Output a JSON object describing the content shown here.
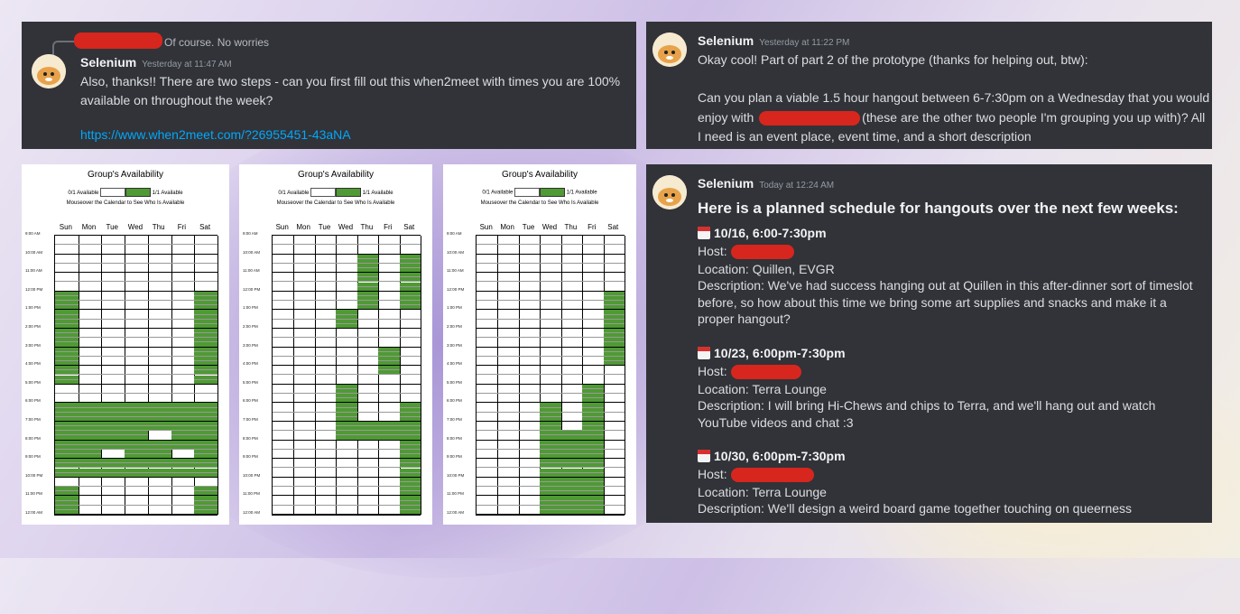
{
  "panel1": {
    "reply_text": "Of course. No worries",
    "username": "Selenium",
    "timestamp": "Yesterday at 11:47 AM",
    "message": "Also, thanks!! There are two steps - can you first fill out this when2meet with times you are 100% available on throughout the week?",
    "link": "https://www.when2meet.com/?26955451-43aNA"
  },
  "panel2": {
    "username": "Selenium",
    "timestamp": "Yesterday at 11:22 PM",
    "line1": "Okay cool! Part of part 2 of the prototype (thanks for helping out, btw):",
    "line2a": "Can you plan a viable 1.5 hour hangout between 6-7:30pm on a Wednesday that you would",
    "line2b_pre": "enjoy with",
    "line2b_post": "(these are the other two people I'm grouping you up with)? All",
    "line2c": "I need is an event place, event time, and a short description"
  },
  "w2m_common": {
    "title": "Group's Availability",
    "legend_left": "0/1 Available",
    "legend_right": "1/1 Available",
    "subtitle": "Mouseover the Calendar to See Who Is Available",
    "days": [
      "Sun",
      "Mon",
      "Tue",
      "Wed",
      "Thu",
      "Fri",
      "Sat"
    ],
    "times": [
      "9:00 AM",
      "10:00 AM",
      "11:00 AM",
      "12:00 PM",
      "1:00 PM",
      "2:00 PM",
      "3:00 PM",
      "4:00 PM",
      "5:00 PM",
      "6:00 PM",
      "7:00 PM",
      "8:00 PM",
      "9:00 PM",
      "10:00 PM",
      "11:00 PM",
      "12:00 AM"
    ],
    "available_color": "#4f9a34"
  },
  "availability": [
    {
      "name": "calendar-1",
      "days": [
        [
          [
            12,
            17
          ],
          [
            18,
            22
          ],
          [
            22.5,
            24
          ]
        ],
        [
          [
            18,
            22
          ]
        ],
        [
          [
            18,
            20.5
          ],
          [
            21,
            22
          ]
        ],
        [
          [
            18,
            22
          ]
        ],
        [
          [
            18,
            19.5
          ],
          [
            20,
            22
          ]
        ],
        [
          [
            18,
            20.5
          ],
          [
            21,
            22
          ]
        ],
        [
          [
            12,
            17
          ],
          [
            18,
            22
          ],
          [
            22.5,
            24
          ]
        ]
      ]
    },
    {
      "name": "calendar-2",
      "days": [
        [],
        [],
        [],
        [
          [
            13,
            14
          ],
          [
            17,
            20
          ]
        ],
        [
          [
            10,
            13
          ],
          [
            19,
            20
          ]
        ],
        [
          [
            15,
            16.5
          ],
          [
            19,
            20
          ]
        ],
        [
          [
            10,
            13
          ],
          [
            18,
            24
          ]
        ]
      ]
    },
    {
      "name": "calendar-3",
      "days": [
        [],
        [],
        [],
        [
          [
            18,
            24
          ]
        ],
        [
          [
            19.5,
            24
          ]
        ],
        [
          [
            17,
            24
          ]
        ],
        [
          [
            12,
            16
          ]
        ]
      ]
    }
  ],
  "panel3": {
    "username": "Selenium",
    "timestamp": "Today at 12:24 AM",
    "heading": "Here is a planned schedule for hangouts over the next few weeks:",
    "events": [
      {
        "title": "10/16, 6:00-7:30pm",
        "host_label": "Host:",
        "location": "Location: Quillen, EVGR",
        "description": "Description: We've had success hanging out at Quillen in this after-dinner sort of timeslot before, so how about this time we bring some art supplies and snacks and make it a proper hangout?"
      },
      {
        "title": "10/23, 6:00pm-7:30pm",
        "host_label": "Host:",
        "location": "Location: Terra Lounge",
        "description": "Description: I will bring Hi-Chews and chips to Terra, and we'll hang out and watch YouTube videos and chat :3"
      },
      {
        "title": "10/30, 6:00pm-7:30pm",
        "host_label": "Host:",
        "location": "Location: Terra Lounge",
        "description": "Description: We'll design a weird board game together touching on queerness"
      }
    ]
  }
}
